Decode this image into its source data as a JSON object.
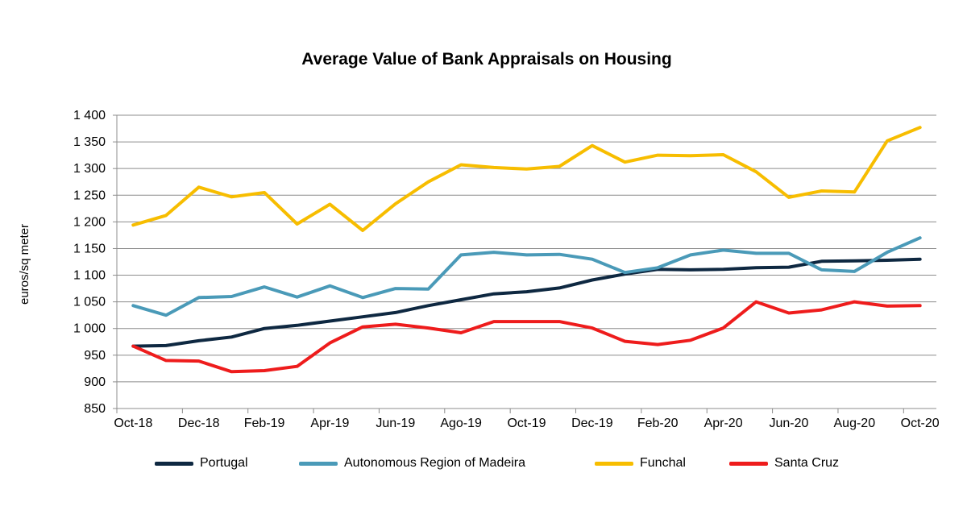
{
  "chart_data": {
    "type": "line",
    "title": "Average Value of Bank Appraisals on Housing",
    "ylabel": "euros/sq meter",
    "xlabel": "",
    "ylim": [
      850,
      1400
    ],
    "yticks": [
      850,
      900,
      950,
      1000,
      1050,
      1100,
      1150,
      1200,
      1250,
      1300,
      1350,
      1400
    ],
    "ytick_labels": [
      "850",
      "900",
      "950",
      "1 000",
      "1 050",
      "1 100",
      "1 150",
      "1 200",
      "1 250",
      "1 300",
      "1 350",
      "1 400"
    ],
    "categories": [
      "Oct-18",
      "Nov-18",
      "Dec-18",
      "Jan-19",
      "Feb-19",
      "Mar-19",
      "Apr-19",
      "May-19",
      "Jun-19",
      "Jul-19",
      "Ago-19",
      "Sep-19",
      "Oct-19",
      "Nov-19",
      "Dec-19",
      "Jan-20",
      "Feb-20",
      "Mar-20",
      "Apr-20",
      "May-20",
      "Jun-20",
      "Jul-20",
      "Aug-20",
      "Sep-20",
      "Oct-20"
    ],
    "xtick_labels_shown": [
      "Oct-18",
      "Dec-18",
      "Feb-19",
      "Apr-19",
      "Jun-19",
      "Ago-19",
      "Oct-19",
      "Dec-19",
      "Feb-20",
      "Apr-20",
      "Jun-20",
      "Aug-20",
      "Oct-20"
    ],
    "grid": "horizontal",
    "legend_position": "bottom",
    "series": [
      {
        "name": "Portugal",
        "color": "#0e2841",
        "values": [
          967,
          968,
          977,
          984,
          1000,
          1006,
          1014,
          1022,
          1030,
          1043,
          1054,
          1065,
          1069,
          1076,
          1091,
          1102,
          1111,
          1110,
          1111,
          1114,
          1115,
          1126,
          1127,
          1128,
          1130
        ]
      },
      {
        "name": "Autonomous Region of Madeira",
        "color": "#4a9ab8",
        "values": [
          1043,
          1025,
          1058,
          1060,
          1078,
          1059,
          1080,
          1058,
          1075,
          1074,
          1138,
          1143,
          1138,
          1139,
          1130,
          1105,
          1114,
          1138,
          1147,
          1141,
          1141,
          1110,
          1107,
          1143,
          1170
        ]
      },
      {
        "name": "Funchal",
        "color": "#f7bd00",
        "values": [
          1194,
          1212,
          1265,
          1247,
          1255,
          1196,
          1233,
          1184,
          1234,
          1275,
          1307,
          1302,
          1299,
          1304,
          1343,
          1312,
          1325,
          1324,
          1326,
          1294,
          1246,
          1258,
          1256,
          1352,
          1377
        ]
      },
      {
        "name": "Santa Cruz",
        "color": "#ee1c1c",
        "values": [
          967,
          940,
          939,
          919,
          921,
          929,
          973,
          1003,
          1008,
          1001,
          992,
          1013,
          1013,
          1013,
          1001,
          976,
          970,
          978,
          1001,
          1050,
          1029,
          1035,
          1050,
          1042,
          1043
        ]
      }
    ]
  }
}
